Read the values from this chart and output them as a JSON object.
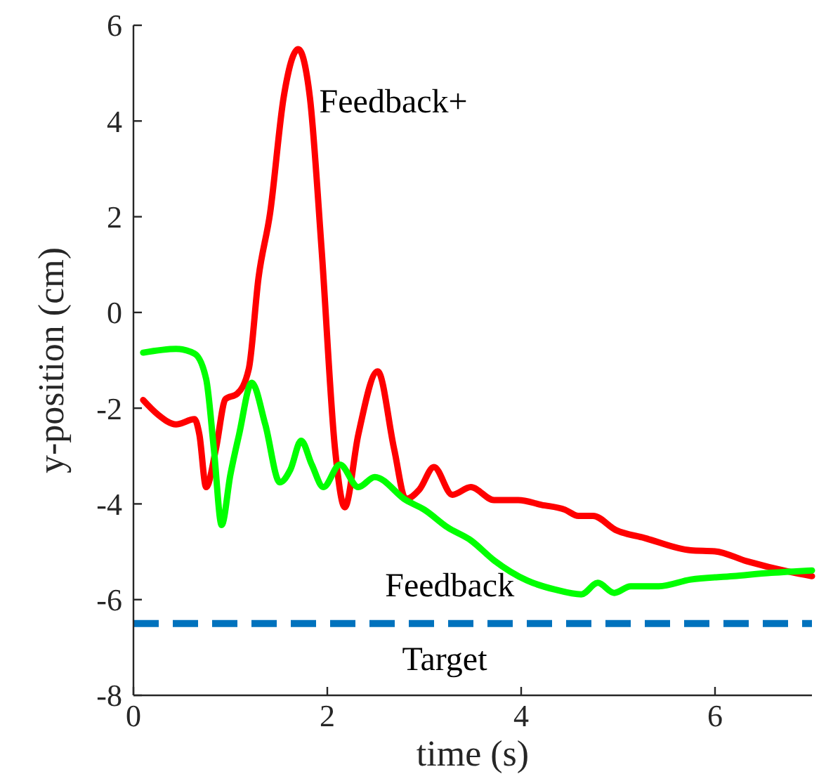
{
  "chart_data": {
    "type": "line",
    "xlabel": "time (s)",
    "ylabel": "y-position (cm)",
    "xlim": [
      0,
      7
    ],
    "ylim": [
      -8,
      6
    ],
    "xticks": [
      0,
      2,
      4,
      6
    ],
    "yticks": [
      -8,
      -6,
      -4,
      -2,
      0,
      2,
      4,
      6
    ],
    "grid": false,
    "line_style": "solid",
    "marker": "none",
    "series": [
      {
        "name": "Feedback+",
        "color": "#ff0000",
        "x": [
          0.1,
          0.25,
          0.44,
          0.63,
          0.68,
          0.75,
          0.85,
          0.95,
          1.07,
          1.19,
          1.29,
          1.41,
          1.55,
          1.7,
          1.82,
          1.94,
          2.08,
          2.18,
          2.32,
          2.52,
          2.69,
          2.81,
          2.95,
          3.1,
          3.29,
          3.48,
          3.72,
          3.97,
          4.21,
          4.45,
          4.59,
          4.74,
          4.98,
          5.27,
          5.75,
          6.0,
          6.33,
          6.77,
          7.0
        ],
        "values": [
          -1.83,
          -2.13,
          -2.34,
          -2.23,
          -2.55,
          -3.65,
          -2.86,
          -1.81,
          -1.7,
          -1.18,
          0.72,
          2.08,
          4.5,
          5.5,
          4.5,
          1.35,
          -2.86,
          -4.07,
          -2.55,
          -1.23,
          -2.86,
          -3.9,
          -3.7,
          -3.23,
          -3.81,
          -3.65,
          -3.92,
          -3.92,
          -4.02,
          -4.12,
          -4.25,
          -4.25,
          -4.55,
          -4.71,
          -4.97,
          -4.99,
          -5.2,
          -5.42,
          -5.51
        ]
      },
      {
        "name": "Feedback",
        "color": "#00ff00",
        "x": [
          0.1,
          0.44,
          0.63,
          0.75,
          0.83,
          0.91,
          1.0,
          1.09,
          1.22,
          1.36,
          1.51,
          1.62,
          1.73,
          1.84,
          1.96,
          2.13,
          2.32,
          2.49,
          2.81,
          3.0,
          3.24,
          3.48,
          3.72,
          4.06,
          4.35,
          4.62,
          4.79,
          4.96,
          5.13,
          5.42,
          5.75,
          6.19,
          6.58,
          7.0
        ],
        "values": [
          -0.84,
          -0.76,
          -0.86,
          -1.39,
          -2.86,
          -4.44,
          -3.39,
          -2.55,
          -1.47,
          -2.34,
          -3.55,
          -3.28,
          -2.68,
          -3.18,
          -3.65,
          -3.18,
          -3.65,
          -3.44,
          -3.92,
          -4.12,
          -4.49,
          -4.76,
          -5.18,
          -5.6,
          -5.79,
          -5.89,
          -5.65,
          -5.86,
          -5.72,
          -5.72,
          -5.58,
          -5.51,
          -5.44,
          -5.39
        ]
      }
    ],
    "ref_lines": [
      {
        "axis": "y",
        "value": -6.5,
        "label": "Target",
        "color": "#0072bd",
        "line_style": "dashed"
      }
    ]
  }
}
